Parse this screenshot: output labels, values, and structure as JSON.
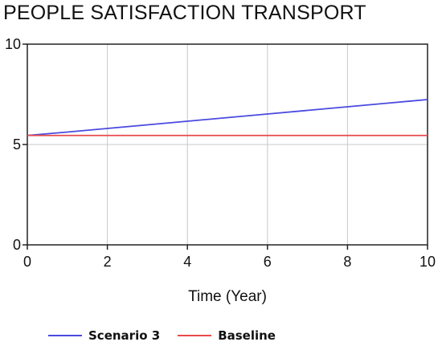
{
  "chart_data": {
    "type": "line",
    "title": "PEOPLE SATISFACTION TRANSPORT",
    "xlabel": "Time (Year)",
    "ylabel": "",
    "xlim": [
      0,
      10
    ],
    "ylim": [
      0,
      10
    ],
    "x_ticks": [
      "0",
      "2",
      "4",
      "6",
      "8",
      "10"
    ],
    "y_ticks": [
      "0",
      "5",
      "10"
    ],
    "grid": true,
    "legend_position": "bottom",
    "x": [
      0,
      1,
      2,
      3,
      4,
      5,
      6,
      7,
      8,
      9,
      10
    ],
    "series": [
      {
        "name": "Scenario 3",
        "color": "#4a4ae0",
        "values": [
          5.45,
          5.62,
          5.8,
          5.98,
          6.16,
          6.34,
          6.52,
          6.7,
          6.88,
          7.06,
          7.24
        ]
      },
      {
        "name": "Baseline",
        "color": "#e84a4a",
        "values": [
          5.45,
          5.45,
          5.45,
          5.45,
          5.45,
          5.45,
          5.45,
          5.45,
          5.45,
          5.45,
          5.45
        ]
      }
    ]
  }
}
